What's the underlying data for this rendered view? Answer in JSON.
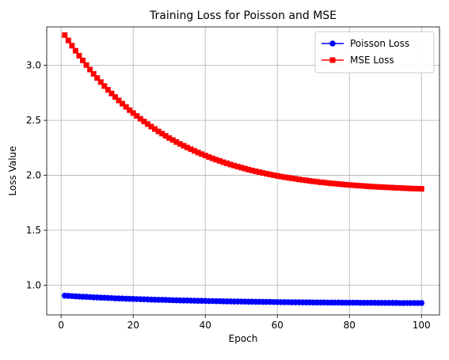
{
  "chart_data": {
    "type": "line",
    "title": "Training Loss for Poisson and MSE",
    "xlabel": "Epoch",
    "ylabel": "Loss Value",
    "xlim": [
      -4,
      105
    ],
    "ylim": [
      0.73,
      3.35
    ],
    "xticks": [
      0,
      20,
      40,
      60,
      80,
      100
    ],
    "yticks": [
      1.0,
      1.5,
      2.0,
      2.5,
      3.0
    ],
    "grid": true,
    "legend_position": "top-right",
    "series": [
      {
        "name": "Poisson Loss",
        "color": "#0000ff",
        "marker": "circle",
        "x": [
          1,
          2,
          3,
          4,
          5,
          6,
          7,
          8,
          9,
          10,
          11,
          12,
          13,
          14,
          15,
          16,
          17,
          18,
          19,
          20,
          21,
          22,
          23,
          24,
          25,
          26,
          27,
          28,
          29,
          30,
          31,
          32,
          33,
          34,
          35,
          36,
          37,
          38,
          39,
          40,
          41,
          42,
          43,
          44,
          45,
          46,
          47,
          48,
          49,
          50,
          51,
          52,
          53,
          54,
          55,
          56,
          57,
          58,
          59,
          60,
          61,
          62,
          63,
          64,
          65,
          66,
          67,
          68,
          69,
          70,
          71,
          72,
          73,
          74,
          75,
          76,
          77,
          78,
          79,
          80,
          81,
          82,
          83,
          84,
          85,
          86,
          87,
          88,
          89,
          90,
          91,
          92,
          93,
          94,
          95,
          96,
          97,
          98,
          99,
          100
        ],
        "y": [
          0.905,
          0.903,
          0.901,
          0.899,
          0.897,
          0.895,
          0.894,
          0.892,
          0.89,
          0.889,
          0.887,
          0.886,
          0.884,
          0.883,
          0.881,
          0.88,
          0.879,
          0.877,
          0.876,
          0.875,
          0.874,
          0.873,
          0.872,
          0.871,
          0.869,
          0.868,
          0.867,
          0.867,
          0.866,
          0.865,
          0.864,
          0.863,
          0.862,
          0.861,
          0.861,
          0.86,
          0.859,
          0.858,
          0.858,
          0.857,
          0.856,
          0.856,
          0.855,
          0.855,
          0.854,
          0.853,
          0.853,
          0.852,
          0.852,
          0.851,
          0.851,
          0.85,
          0.85,
          0.849,
          0.849,
          0.848,
          0.848,
          0.848,
          0.847,
          0.847,
          0.846,
          0.846,
          0.846,
          0.845,
          0.845,
          0.845,
          0.844,
          0.844,
          0.844,
          0.843,
          0.843,
          0.843,
          0.843,
          0.842,
          0.842,
          0.842,
          0.842,
          0.841,
          0.841,
          0.841,
          0.841,
          0.841,
          0.84,
          0.84,
          0.84,
          0.84,
          0.84,
          0.839,
          0.839,
          0.839,
          0.839,
          0.839,
          0.839,
          0.838,
          0.838,
          0.838,
          0.838,
          0.838,
          0.838,
          0.838
        ]
      },
      {
        "name": "MSE Loss",
        "color": "#ff0000",
        "marker": "square",
        "x": [
          1,
          2,
          3,
          4,
          5,
          6,
          7,
          8,
          9,
          10,
          11,
          12,
          13,
          14,
          15,
          16,
          17,
          18,
          19,
          20,
          21,
          22,
          23,
          24,
          25,
          26,
          27,
          28,
          29,
          30,
          31,
          32,
          33,
          34,
          35,
          36,
          37,
          38,
          39,
          40,
          41,
          42,
          43,
          44,
          45,
          46,
          47,
          48,
          49,
          50,
          51,
          52,
          53,
          54,
          55,
          56,
          57,
          58,
          59,
          60,
          61,
          62,
          63,
          64,
          65,
          66,
          67,
          68,
          69,
          70,
          71,
          72,
          73,
          74,
          75,
          76,
          77,
          78,
          79,
          80,
          81,
          82,
          83,
          84,
          85,
          86,
          87,
          88,
          89,
          90,
          91,
          92,
          93,
          94,
          95,
          96,
          97,
          98,
          99,
          100
        ],
        "y": [
          3.276,
          3.227,
          3.179,
          3.133,
          3.088,
          3.045,
          3.003,
          2.962,
          2.923,
          2.885,
          2.848,
          2.812,
          2.778,
          2.744,
          2.712,
          2.681,
          2.651,
          2.622,
          2.593,
          2.566,
          2.54,
          2.514,
          2.49,
          2.466,
          2.443,
          2.421,
          2.399,
          2.379,
          2.359,
          2.339,
          2.321,
          2.303,
          2.285,
          2.269,
          2.253,
          2.237,
          2.222,
          2.207,
          2.193,
          2.18,
          2.167,
          2.154,
          2.142,
          2.131,
          2.119,
          2.109,
          2.098,
          2.088,
          2.079,
          2.07,
          2.061,
          2.052,
          2.044,
          2.036,
          2.029,
          2.021,
          2.014,
          2.008,
          2.001,
          1.995,
          1.989,
          1.983,
          1.978,
          1.973,
          1.968,
          1.963,
          1.958,
          1.954,
          1.949,
          1.945,
          1.941,
          1.937,
          1.934,
          1.93,
          1.927,
          1.924,
          1.921,
          1.918,
          1.915,
          1.912,
          1.91,
          1.907,
          1.905,
          1.903,
          1.9,
          1.898,
          1.896,
          1.894,
          1.893,
          1.891,
          1.889,
          1.888,
          1.886,
          1.885,
          1.883,
          1.882,
          1.88,
          1.879,
          1.878,
          1.877
        ]
      }
    ]
  }
}
